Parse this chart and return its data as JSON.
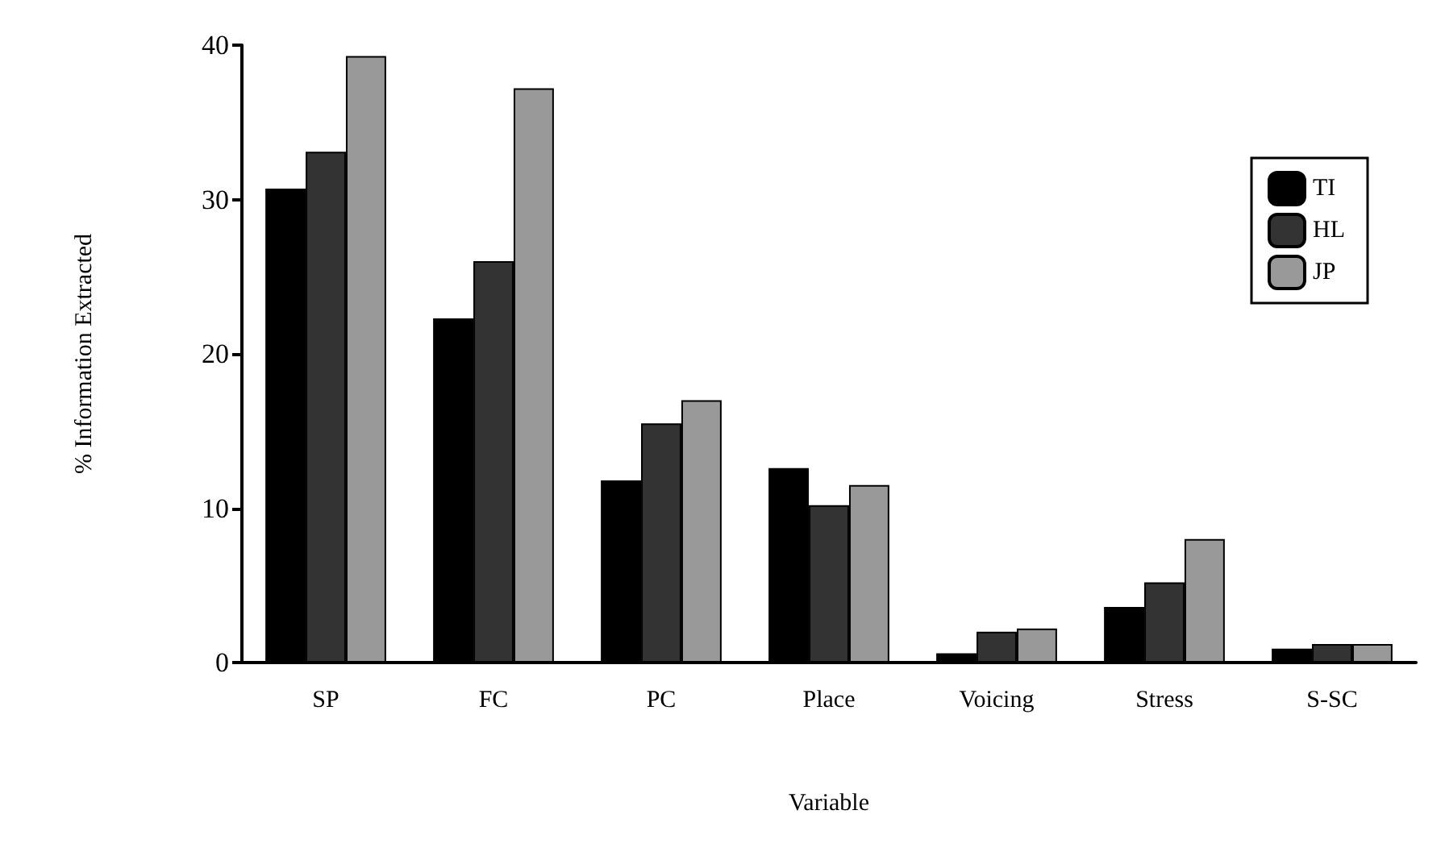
{
  "chart_data": {
    "type": "bar",
    "xlabel": "Variable",
    "ylabel": "% Information Extracted",
    "categories": [
      "SP",
      "FC",
      "PC",
      "Place",
      "Voicing",
      "Stress",
      "S-SC"
    ],
    "series": [
      {
        "name": "TI",
        "color": "#000000",
        "values": [
          30.7,
          22.3,
          11.8,
          12.6,
          0.6,
          3.6,
          0.9
        ]
      },
      {
        "name": "HL",
        "color": "#333333",
        "values": [
          33.1,
          26.0,
          15.5,
          10.2,
          2.0,
          5.2,
          1.2
        ]
      },
      {
        "name": "JP",
        "color": "#999999",
        "values": [
          39.3,
          37.2,
          17.0,
          11.5,
          2.2,
          8.0,
          1.2
        ]
      }
    ],
    "ylim": [
      0,
      40
    ],
    "yticks": [
      0,
      10,
      20,
      30,
      40
    ],
    "grid": false,
    "legend": "top right"
  }
}
